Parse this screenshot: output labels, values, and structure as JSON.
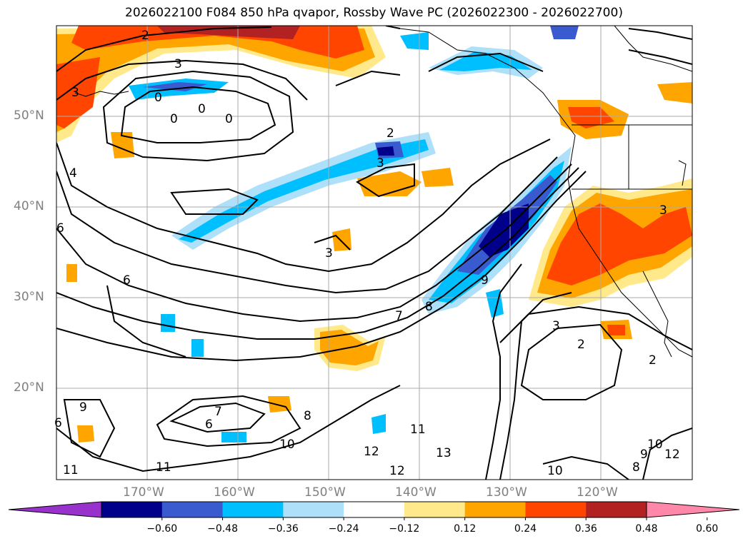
{
  "title": "2026022100 F084 850 hPa qvapor, Rossby Wave PC (2026022300 - 2026022700)",
  "lat_labels": [
    "50°N",
    "40°N",
    "30°N",
    "20°N"
  ],
  "lon_labels": [
    "170°W",
    "160°W",
    "150°W",
    "140°W",
    "130°W",
    "120°W"
  ],
  "colorbar": {
    "colors": [
      "#9932cc",
      "#00008b",
      "#3a5bd0",
      "#00bfff",
      "#aee0fa",
      "#ffffff",
      "#ffe98a",
      "#ffa500",
      "#ff4500",
      "#b22222",
      "#ff88aa"
    ],
    "tick_labels": [
      "−0.60",
      "−0.48",
      "−0.36",
      "−0.24",
      "−0.12",
      "0.12",
      "0.24",
      "0.36",
      "0.48",
      "0.60"
    ]
  },
  "contour_labels": [
    {
      "text": "2"
    },
    {
      "text": "3"
    },
    {
      "text": "3"
    },
    {
      "text": "0"
    },
    {
      "text": "0"
    },
    {
      "text": "0"
    },
    {
      "text": "0"
    },
    {
      "text": "2"
    },
    {
      "text": "3"
    },
    {
      "text": "4"
    },
    {
      "text": "3"
    },
    {
      "text": "6"
    },
    {
      "text": "6"
    },
    {
      "text": "7"
    },
    {
      "text": "8"
    },
    {
      "text": "9"
    },
    {
      "text": "3"
    },
    {
      "text": "2"
    },
    {
      "text": "2"
    },
    {
      "text": "9"
    },
    {
      "text": "7"
    },
    {
      "text": "6"
    },
    {
      "text": "8"
    },
    {
      "text": "10"
    },
    {
      "text": "11"
    },
    {
      "text": "11"
    },
    {
      "text": "12"
    },
    {
      "text": "13"
    },
    {
      "text": "12"
    },
    {
      "text": "11"
    },
    {
      "text": "10"
    },
    {
      "text": "8"
    },
    {
      "text": "9"
    },
    {
      "text": "10"
    },
    {
      "text": "12"
    },
    {
      "text": "3"
    },
    {
      "text": "6"
    }
  ]
}
